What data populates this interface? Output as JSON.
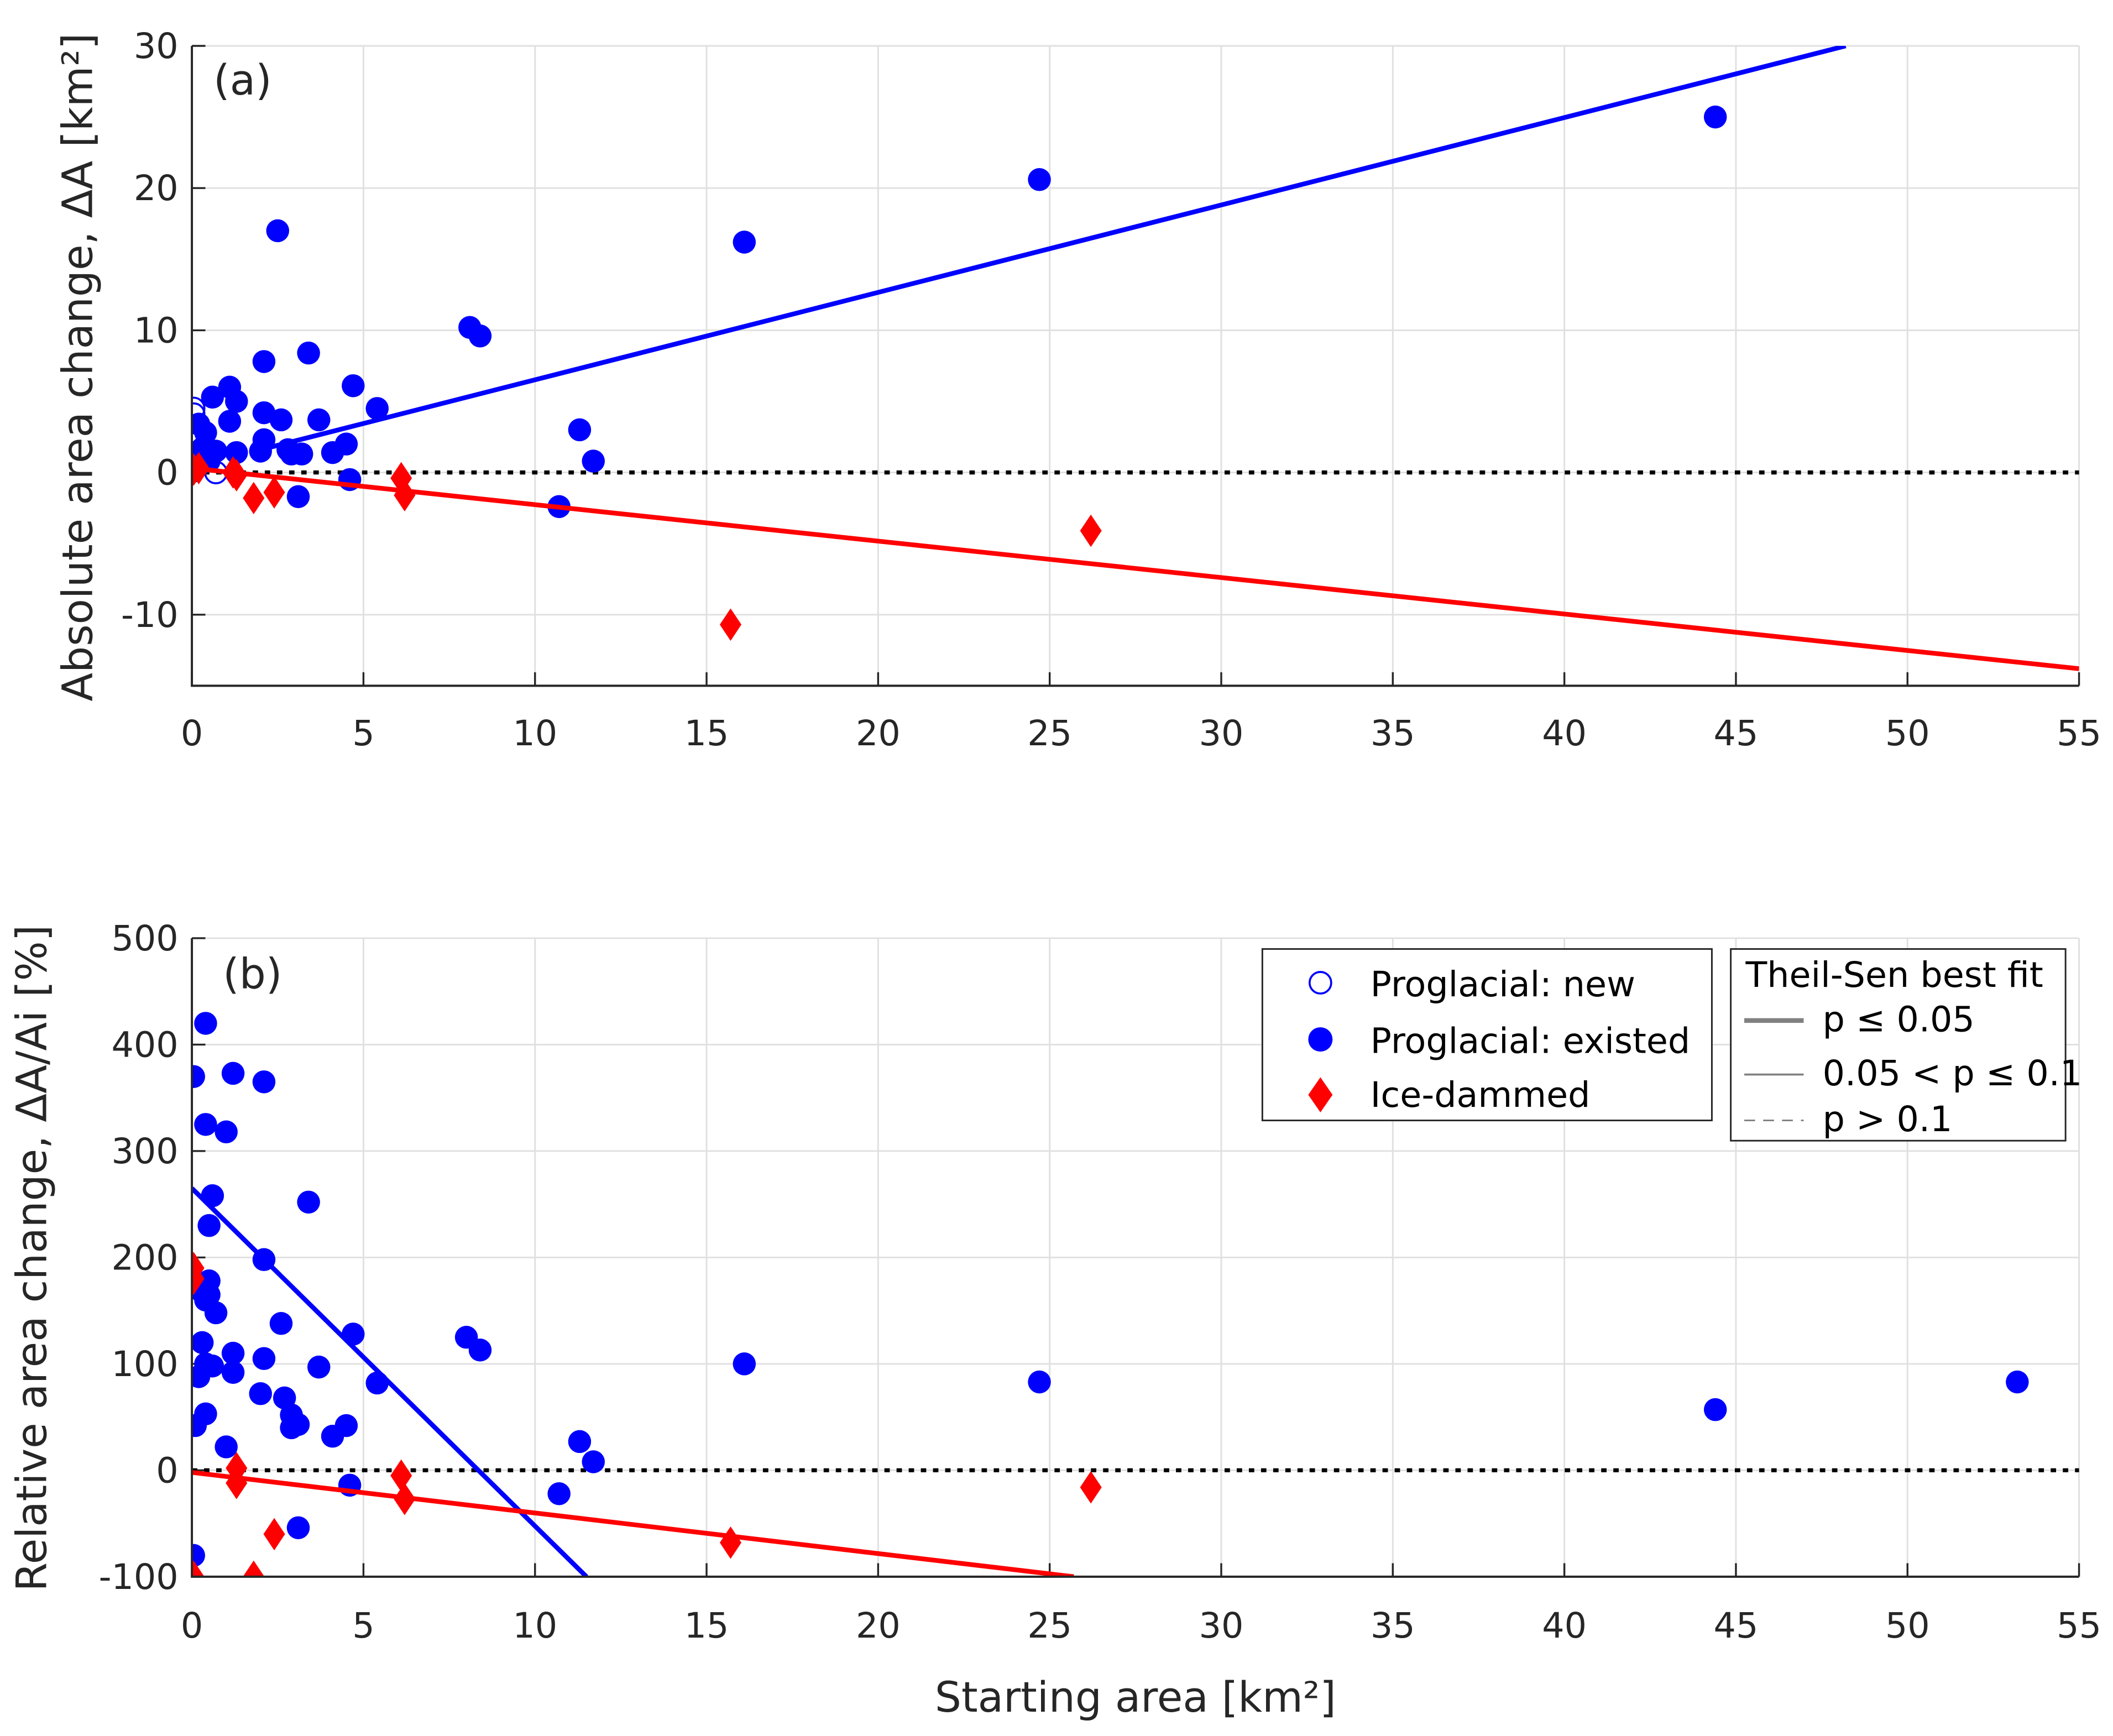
{
  "chart_data": [
    {
      "type": "scatter",
      "panel_label": "(a)",
      "ylabel": "Absolute area change, ΔA [km²]",
      "xlabel": "",
      "xlim": [
        0,
        55
      ],
      "ylim": [
        -15,
        30
      ],
      "xticks": [
        0,
        5,
        10,
        15,
        20,
        25,
        30,
        35,
        40,
        45,
        50,
        55
      ],
      "yticks": [
        -10,
        0,
        10,
        20,
        30
      ],
      "grid": true,
      "series": [
        {
          "name": "Proglacial: new",
          "marker": "open-circle",
          "color": "#0000ff",
          "points": [
            [
              0.05,
              4.5
            ],
            [
              0.05,
              4.1
            ],
            [
              0.7,
              0.0
            ],
            [
              0.15,
              0.5
            ]
          ]
        },
        {
          "name": "Proglacial: existed",
          "marker": "circle",
          "color": "#0000ff",
          "points": [
            [
              44.4,
              25
            ],
            [
              24.7,
              20.6
            ],
            [
              16.1,
              16.2
            ],
            [
              2.5,
              17
            ],
            [
              8.1,
              10.2
            ],
            [
              8.4,
              9.6
            ],
            [
              3.4,
              8.4
            ],
            [
              2.1,
              7.8
            ],
            [
              4.7,
              6.1
            ],
            [
              1.1,
              6
            ],
            [
              0.6,
              5.3
            ],
            [
              1.3,
              5
            ],
            [
              5.4,
              4.5
            ],
            [
              2.1,
              4.2
            ],
            [
              0.2,
              3.4
            ],
            [
              2.6,
              3.7
            ],
            [
              3.7,
              3.7
            ],
            [
              1.1,
              3.6
            ],
            [
              11.3,
              3.0
            ],
            [
              0.4,
              2.8
            ],
            [
              2.1,
              2.3
            ],
            [
              4.5,
              2.0
            ],
            [
              2.8,
              1.6
            ],
            [
              0.3,
              1.7
            ],
            [
              2.9,
              1.3
            ],
            [
              3.2,
              1.3
            ],
            [
              4.1,
              1.4
            ],
            [
              1.3,
              1.4
            ],
            [
              0.7,
              1.5
            ],
            [
              0.1,
              1.4
            ],
            [
              2.0,
              1.5
            ],
            [
              11.7,
              0.8
            ],
            [
              0.5,
              0.8
            ],
            [
              0.2,
              0.5
            ],
            [
              4.6,
              -0.5
            ],
            [
              3.1,
              -1.7
            ],
            [
              10.7,
              -2.4
            ],
            [
              0.05,
              0.1
            ]
          ]
        },
        {
          "name": "Ice-dammed",
          "marker": "diamond",
          "color": "#ff0000",
          "points": [
            [
              0.05,
              0.2
            ],
            [
              0.2,
              0.3
            ],
            [
              1.2,
              0.0
            ],
            [
              1.3,
              -0.2
            ],
            [
              1.8,
              -1.8
            ],
            [
              2.4,
              -1.4
            ],
            [
              6.1,
              -0.4
            ],
            [
              6.2,
              -1.6
            ],
            [
              15.7,
              -10.7
            ],
            [
              26.2,
              -4.1
            ]
          ]
        }
      ],
      "fits": [
        {
          "color": "#0000ff",
          "style": "p ≤ 0.05",
          "from": [
            2.0,
            1.6
          ],
          "to": [
            48.2,
            30
          ]
        },
        {
          "color": "#ff0000",
          "style": "p ≤ 0.05",
          "from": [
            0,
            0.3
          ],
          "to": [
            55,
            -13.8
          ]
        }
      ],
      "reference_line": {
        "y": 0,
        "style": "dotted",
        "color": "#000000"
      }
    },
    {
      "type": "scatter",
      "panel_label": "(b)",
      "ylabel": "Relative area change, ΔA/Ai [%]",
      "xlabel": "Starting area [km²]",
      "xlim": [
        0,
        55
      ],
      "ylim": [
        -100,
        500
      ],
      "xticks": [
        0,
        5,
        10,
        15,
        20,
        25,
        30,
        35,
        40,
        45,
        50,
        55
      ],
      "yticks": [
        -100,
        0,
        100,
        200,
        300,
        400,
        500
      ],
      "grid": true,
      "series": [
        {
          "name": "Proglacial: existed",
          "marker": "circle",
          "color": "#0000ff",
          "points": [
            [
              0.05,
              370
            ],
            [
              0.4,
              420
            ],
            [
              0.4,
              325
            ],
            [
              1.0,
              318
            ],
            [
              1.2,
              373
            ],
            [
              2.1,
              365
            ],
            [
              0.6,
              258
            ],
            [
              0.5,
              230
            ],
            [
              3.4,
              252
            ],
            [
              2.1,
              198
            ],
            [
              0.5,
              178
            ],
            [
              0.2,
              170
            ],
            [
              0.4,
              160
            ],
            [
              0.7,
              148
            ],
            [
              0.5,
              165
            ],
            [
              0.3,
              120
            ],
            [
              2.6,
              138
            ],
            [
              4.7,
              128
            ],
            [
              8.0,
              125
            ],
            [
              8.4,
              113
            ],
            [
              1.2,
              110
            ],
            [
              2.1,
              105
            ],
            [
              0.6,
              98
            ],
            [
              0.4,
              100
            ],
            [
              3.7,
              97
            ],
            [
              0.2,
              88
            ],
            [
              1.2,
              92
            ],
            [
              5.4,
              82
            ],
            [
              16.1,
              100
            ],
            [
              24.7,
              83
            ],
            [
              53.2,
              83
            ],
            [
              44.4,
              57
            ],
            [
              2.0,
              72
            ],
            [
              2.7,
              68
            ],
            [
              2.9,
              52
            ],
            [
              3.1,
              43
            ],
            [
              2.9,
              40
            ],
            [
              0.4,
              53
            ],
            [
              0.1,
              42
            ],
            [
              4.5,
              42
            ],
            [
              4.1,
              32
            ],
            [
              11.3,
              27
            ],
            [
              1.0,
              22
            ],
            [
              11.7,
              8
            ],
            [
              4.6,
              -14
            ],
            [
              10.7,
              -22
            ],
            [
              3.1,
              -54
            ],
            [
              0.05,
              -80
            ]
          ]
        },
        {
          "name": "Ice-dammed",
          "marker": "diamond",
          "color": "#ff0000",
          "points": [
            [
              0.05,
              190
            ],
            [
              0.05,
              180
            ],
            [
              0.05,
              -100
            ],
            [
              1.3,
              2
            ],
            [
              1.3,
              -12
            ],
            [
              1.8,
              -100
            ],
            [
              2.4,
              -60
            ],
            [
              6.1,
              -5
            ],
            [
              6.2,
              -27
            ],
            [
              15.7,
              -68
            ],
            [
              26.2,
              -16
            ]
          ]
        }
      ],
      "fits": [
        {
          "color": "#0000ff",
          "style": "p ≤ 0.05",
          "from": [
            0,
            265
          ],
          "to": [
            11.5,
            -100
          ]
        },
        {
          "color": "#ff0000",
          "style": "p ≤ 0.05",
          "from": [
            0,
            -2
          ],
          "to": [
            25.7,
            -100
          ]
        }
      ],
      "reference_line": {
        "y": 0,
        "style": "dotted",
        "color": "#000000"
      }
    }
  ],
  "legend": {
    "placement": "top-right",
    "markers": [
      "Proglacial: new",
      "Proglacial: existed",
      "Ice-dammed"
    ],
    "fit_title": "Theil-Sen best fit",
    "fit_styles": [
      "p ≤ 0.05",
      "0.05 < p ≤ 0.1",
      "p > 0.1"
    ]
  }
}
